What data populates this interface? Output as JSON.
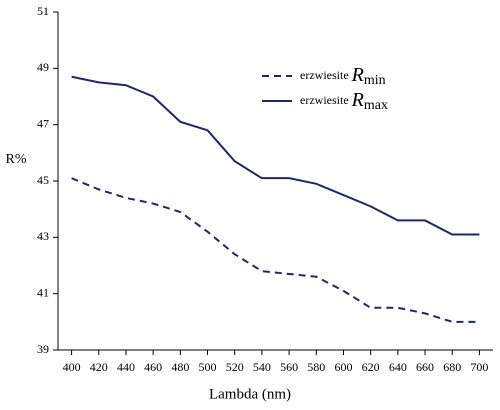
{
  "chart_data": {
    "type": "line",
    "x_label": "Lambda (nm)",
    "y_label": "R%",
    "x": [
      400,
      420,
      440,
      460,
      480,
      500,
      520,
      540,
      560,
      580,
      600,
      620,
      640,
      660,
      680,
      700
    ],
    "series": [
      {
        "name": "erzwiesite Rmin",
        "color": "#1c2a66",
        "dashed": true,
        "values": [
          45.1,
          44.7,
          44.4,
          44.2,
          43.9,
          43.2,
          42.4,
          41.8,
          41.7,
          41.6,
          41.1,
          40.5,
          40.5,
          40.3,
          40.0,
          40.0
        ]
      },
      {
        "name": "erzwiesite Rmax",
        "color": "#1c2a66",
        "dashed": false,
        "values": [
          48.7,
          48.5,
          48.4,
          48.0,
          47.1,
          46.8,
          45.7,
          45.1,
          45.1,
          44.9,
          44.5,
          44.1,
          43.6,
          43.6,
          43.1,
          43.1
        ]
      }
    ],
    "ylim": [
      39,
      51
    ],
    "yticks": [
      39,
      41,
      43,
      45,
      47,
      49,
      51
    ],
    "grid": false,
    "legend": "top-right"
  }
}
